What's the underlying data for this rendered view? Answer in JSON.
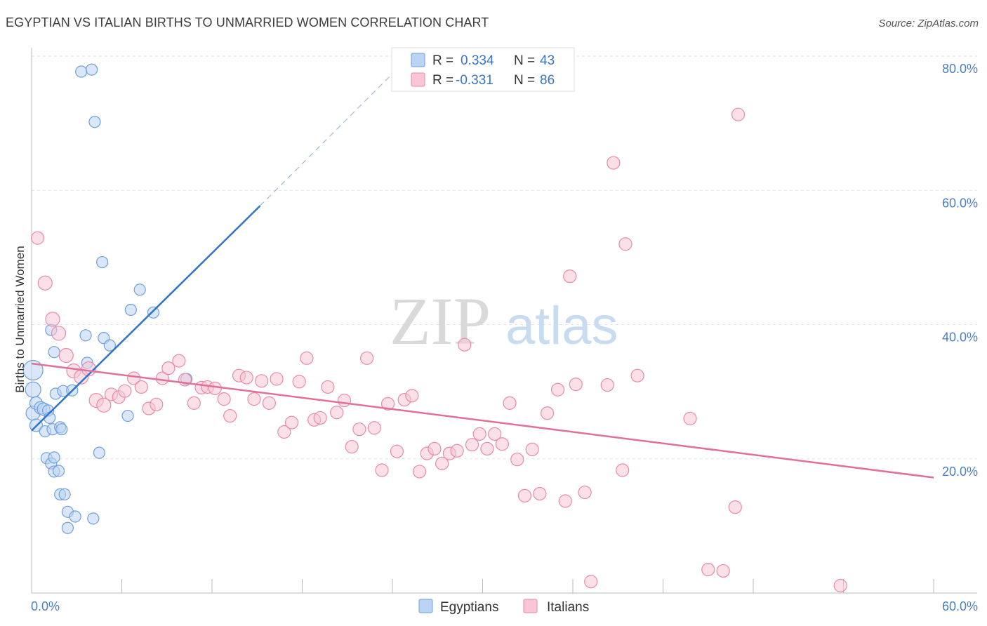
{
  "header": {
    "title": "EGYPTIAN VS ITALIAN BIRTHS TO UNMARRIED WOMEN CORRELATION CHART",
    "source": "Source: ZipAtlas.com"
  },
  "watermark": {
    "zip": "ZIP",
    "atlas": "atlas"
  },
  "legend": {
    "rows": [
      {
        "r_label": "R =",
        "r_value": "0.334",
        "n_label": "N =",
        "n_value": "43"
      },
      {
        "r_label": "R =",
        "r_value": "-0.331",
        "n_label": "N =",
        "n_value": "86"
      }
    ]
  },
  "bottom_legend": {
    "items": [
      "Egyptians",
      "Italians"
    ]
  },
  "colors": {
    "egyptians_fill": "#bcd4f4",
    "egyptians_stroke": "#6f9fdc",
    "egyptians_line": "#2f74cc",
    "italians_fill": "#f8c6d6",
    "italians_stroke": "#e98aaa",
    "italians_line": "#e0709a",
    "grid": "#e2e2e2",
    "tick_text": "#4a7fc4"
  },
  "chart_data": {
    "type": "scatter",
    "title": "EGYPTIAN VS ITALIAN BIRTHS TO UNMARRIED WOMEN CORRELATION CHART",
    "xlabel": "",
    "ylabel": "Births to Unmarried Women",
    "xlim": [
      0,
      60
    ],
    "ylim": [
      0,
      80
    ],
    "x_ticks": [
      "0.0%",
      "60.0%"
    ],
    "y_ticks": [
      "20.0%",
      "40.0%",
      "60.0%",
      "80.0%"
    ],
    "y_tick_values": [
      20,
      40,
      60,
      80
    ],
    "grid": true,
    "series": [
      {
        "name": "Egyptians",
        "r": 0.334,
        "n": 43,
        "trend": {
          "x0": 0,
          "y0": 24.2,
          "x1": 15.2,
          "y1": 57.7,
          "dash_x1": 24.5,
          "dash_y1": 78.5
        },
        "points": [
          [
            0.1,
            33.2,
            14
          ],
          [
            0.1,
            30.3,
            11
          ],
          [
            0.1,
            26.8,
            10
          ],
          [
            0.3,
            28.3,
            9
          ],
          [
            0.3,
            25.0,
            9
          ],
          [
            0.6,
            27.6,
            9
          ],
          [
            0.8,
            27.4,
            9
          ],
          [
            0.9,
            24.1,
            8
          ],
          [
            1.1,
            27.2,
            8
          ],
          [
            1.2,
            26.1,
            8
          ],
          [
            1.3,
            39.2,
            8
          ],
          [
            1.5,
            35.9,
            8
          ],
          [
            1.4,
            24.4,
            8
          ],
          [
            1.9,
            24.7,
            8
          ],
          [
            2.0,
            24.4,
            8
          ],
          [
            1.6,
            29.7,
            8
          ],
          [
            2.1,
            30.1,
            8
          ],
          [
            1.0,
            20.1,
            8
          ],
          [
            1.3,
            19.3,
            8
          ],
          [
            1.5,
            20.2,
            8
          ],
          [
            1.5,
            18.1,
            8
          ],
          [
            2.7,
            30.2,
            8
          ],
          [
            1.8,
            18.2,
            8
          ],
          [
            1.9,
            14.7,
            8
          ],
          [
            2.2,
            14.7,
            8
          ],
          [
            2.4,
            12.1,
            8
          ],
          [
            2.9,
            11.4,
            8
          ],
          [
            2.4,
            9.7,
            8
          ],
          [
            4.1,
            11.1,
            8
          ],
          [
            4.5,
            20.9,
            8
          ],
          [
            3.6,
            38.4,
            8
          ],
          [
            3.7,
            34.3,
            8
          ],
          [
            4.8,
            38.0,
            8
          ],
          [
            5.2,
            36.9,
            8
          ],
          [
            4.7,
            49.3,
            8
          ],
          [
            6.6,
            42.2,
            8
          ],
          [
            7.2,
            45.2,
            8
          ],
          [
            8.1,
            41.8,
            8
          ],
          [
            6.4,
            26.4,
            8
          ],
          [
            10.3,
            31.9,
            8
          ],
          [
            3.3,
            77.7,
            8
          ],
          [
            4.0,
            78.0,
            8
          ],
          [
            4.2,
            70.2,
            8
          ]
        ]
      },
      {
        "name": "Italians",
        "r": -0.331,
        "n": 86,
        "trend": {
          "x0": 0,
          "y0": 34.2,
          "x1": 60,
          "y1": 17.2
        },
        "points": [
          [
            0.4,
            52.9,
            9
          ],
          [
            0.9,
            46.2,
            10
          ],
          [
            1.4,
            40.8,
            10
          ],
          [
            1.8,
            38.7,
            10
          ],
          [
            2.3,
            35.4,
            10
          ],
          [
            2.8,
            33.1,
            10
          ],
          [
            3.3,
            32.2,
            10
          ],
          [
            3.8,
            33.4,
            10
          ],
          [
            4.3,
            28.7,
            10
          ],
          [
            4.8,
            28.0,
            10
          ],
          [
            5.3,
            29.6,
            9
          ],
          [
            5.8,
            29.2,
            9
          ],
          [
            6.2,
            30.1,
            9
          ],
          [
            6.8,
            32.0,
            9
          ],
          [
            7.3,
            30.7,
            9
          ],
          [
            7.8,
            27.5,
            9
          ],
          [
            8.3,
            28.1,
            9
          ],
          [
            8.7,
            32.0,
            9
          ],
          [
            9.1,
            33.5,
            9
          ],
          [
            9.8,
            34.6,
            9
          ],
          [
            10.2,
            31.8,
            9
          ],
          [
            10.8,
            28.3,
            9
          ],
          [
            11.3,
            30.6,
            9
          ],
          [
            11.7,
            30.7,
            9
          ],
          [
            12.2,
            30.5,
            9
          ],
          [
            12.8,
            28.9,
            9
          ],
          [
            13.2,
            26.4,
            9
          ],
          [
            13.8,
            32.4,
            9
          ],
          [
            14.3,
            32.1,
            9
          ],
          [
            14.8,
            28.9,
            9
          ],
          [
            15.3,
            31.6,
            9
          ],
          [
            15.8,
            28.3,
            9
          ],
          [
            16.3,
            31.9,
            9
          ],
          [
            16.8,
            24.0,
            9
          ],
          [
            17.3,
            25.4,
            9
          ],
          [
            17.8,
            31.5,
            9
          ],
          [
            18.3,
            35.0,
            9
          ],
          [
            18.8,
            25.8,
            9
          ],
          [
            19.2,
            26.1,
            9
          ],
          [
            19.7,
            30.7,
            9
          ],
          [
            20.3,
            26.9,
            9
          ],
          [
            20.8,
            28.7,
            9
          ],
          [
            21.3,
            21.8,
            9
          ],
          [
            21.8,
            24.4,
            9
          ],
          [
            22.3,
            35.0,
            9
          ],
          [
            22.8,
            24.6,
            9
          ],
          [
            23.3,
            18.3,
            9
          ],
          [
            23.7,
            28.2,
            9
          ],
          [
            24.3,
            21.1,
            9
          ],
          [
            24.8,
            28.8,
            9
          ],
          [
            25.3,
            29.4,
            9
          ],
          [
            25.8,
            18.1,
            9
          ],
          [
            26.3,
            20.8,
            9
          ],
          [
            26.8,
            21.5,
            9
          ],
          [
            27.3,
            19.3,
            9
          ],
          [
            27.8,
            20.8,
            9
          ],
          [
            28.3,
            21.2,
            9
          ],
          [
            28.8,
            37.0,
            9
          ],
          [
            29.3,
            22.1,
            9
          ],
          [
            29.8,
            23.7,
            9
          ],
          [
            30.3,
            21.5,
            9
          ],
          [
            30.8,
            23.7,
            9
          ],
          [
            31.3,
            22.2,
            9
          ],
          [
            31.8,
            28.3,
            9
          ],
          [
            32.3,
            19.9,
            9
          ],
          [
            32.8,
            14.5,
            9
          ],
          [
            33.3,
            21.4,
            9
          ],
          [
            33.8,
            14.8,
            9
          ],
          [
            34.3,
            26.8,
            9
          ],
          [
            35.0,
            30.3,
            9
          ],
          [
            35.5,
            13.7,
            9
          ],
          [
            35.8,
            47.2,
            9
          ],
          [
            36.2,
            31.1,
            9
          ],
          [
            36.8,
            15.0,
            9
          ],
          [
            37.2,
            1.7,
            9
          ],
          [
            38.3,
            31.0,
            9
          ],
          [
            38.7,
            64.1,
            9
          ],
          [
            39.3,
            18.3,
            9
          ],
          [
            39.5,
            52.0,
            9
          ],
          [
            40.3,
            32.4,
            9
          ],
          [
            43.8,
            26.0,
            9
          ],
          [
            45.0,
            3.5,
            9
          ],
          [
            46.0,
            3.3,
            9
          ],
          [
            46.8,
            12.8,
            9
          ],
          [
            47.0,
            71.3,
            9
          ],
          [
            53.8,
            1.1,
            9
          ]
        ]
      }
    ]
  }
}
